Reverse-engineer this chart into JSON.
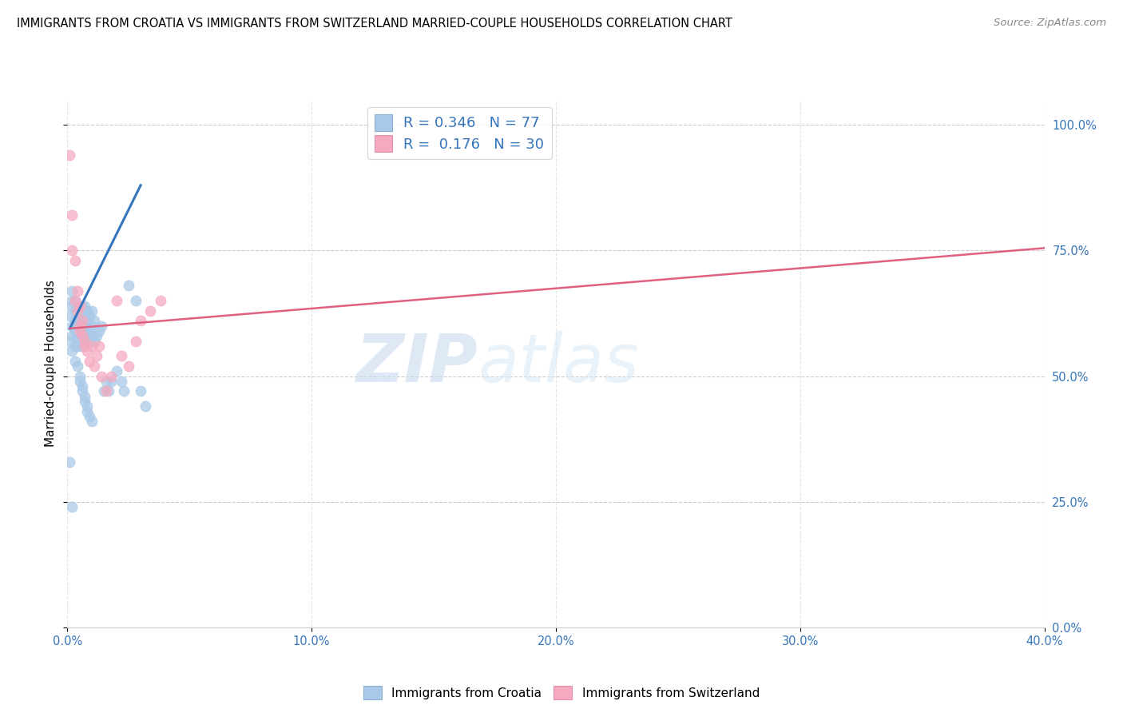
{
  "title": "IMMIGRANTS FROM CROATIA VS IMMIGRANTS FROM SWITZERLAND MARRIED-COUPLE HOUSEHOLDS CORRELATION CHART",
  "source": "Source: ZipAtlas.com",
  "xlim": [
    0.0,
    0.4
  ],
  "ylim": [
    0.0,
    1.05
  ],
  "ylabel": "Married-couple Households",
  "legend_label1": "Immigrants from Croatia",
  "legend_label2": "Immigrants from Switzerland",
  "r1": 0.346,
  "n1": 77,
  "r2": 0.176,
  "n2": 30,
  "color1": "#aac9e8",
  "color2": "#f5aabf",
  "line_color1": "#3575bb",
  "line_color2": "#e06080",
  "watermark_zip": "ZIP",
  "watermark_atlas": "atlas",
  "x_ticks": [
    0.0,
    0.1,
    0.2,
    0.3,
    0.4
  ],
  "x_tick_labels": [
    "0.0%",
    "10.0%",
    "20.0%",
    "30.0%",
    "40.0%"
  ],
  "y_ticks": [
    0.0,
    0.25,
    0.5,
    0.75,
    1.0
  ],
  "y_tick_labels": [
    "0.0%",
    "25.0%",
    "50.0%",
    "75.0%",
    "100.0%"
  ],
  "scatter1_x": [
    0.001,
    0.001,
    0.002,
    0.002,
    0.002,
    0.002,
    0.002,
    0.003,
    0.003,
    0.003,
    0.003,
    0.003,
    0.003,
    0.004,
    0.004,
    0.004,
    0.004,
    0.004,
    0.004,
    0.005,
    0.005,
    0.005,
    0.005,
    0.005,
    0.006,
    0.006,
    0.006,
    0.006,
    0.006,
    0.006,
    0.007,
    0.007,
    0.007,
    0.007,
    0.007,
    0.007,
    0.008,
    0.008,
    0.008,
    0.008,
    0.009,
    0.009,
    0.009,
    0.01,
    0.01,
    0.01,
    0.011,
    0.011,
    0.012,
    0.013,
    0.014,
    0.015,
    0.016,
    0.017,
    0.018,
    0.02,
    0.022,
    0.023,
    0.025,
    0.028,
    0.03,
    0.032,
    0.002,
    0.003,
    0.004,
    0.005,
    0.005,
    0.006,
    0.006,
    0.007,
    0.007,
    0.008,
    0.008,
    0.009,
    0.01,
    0.001,
    0.002
  ],
  "scatter1_y": [
    0.57,
    0.62,
    0.65,
    0.67,
    0.6,
    0.64,
    0.58,
    0.63,
    0.6,
    0.59,
    0.61,
    0.56,
    0.65,
    0.6,
    0.63,
    0.58,
    0.61,
    0.56,
    0.64,
    0.59,
    0.61,
    0.57,
    0.63,
    0.6,
    0.58,
    0.61,
    0.64,
    0.56,
    0.6,
    0.62,
    0.59,
    0.57,
    0.61,
    0.64,
    0.6,
    0.62,
    0.58,
    0.61,
    0.57,
    0.63,
    0.59,
    0.62,
    0.57,
    0.6,
    0.58,
    0.63,
    0.57,
    0.61,
    0.58,
    0.59,
    0.6,
    0.47,
    0.49,
    0.47,
    0.49,
    0.51,
    0.49,
    0.47,
    0.68,
    0.65,
    0.47,
    0.44,
    0.55,
    0.53,
    0.52,
    0.5,
    0.49,
    0.48,
    0.47,
    0.46,
    0.45,
    0.44,
    0.43,
    0.42,
    0.41,
    0.33,
    0.24
  ],
  "scatter2_x": [
    0.001,
    0.002,
    0.002,
    0.003,
    0.004,
    0.004,
    0.005,
    0.005,
    0.006,
    0.006,
    0.007,
    0.008,
    0.009,
    0.01,
    0.011,
    0.012,
    0.013,
    0.014,
    0.016,
    0.018,
    0.02,
    0.022,
    0.025,
    0.028,
    0.03,
    0.034,
    0.038,
    0.003,
    0.005,
    0.007
  ],
  "scatter2_y": [
    0.94,
    0.82,
    0.75,
    0.73,
    0.67,
    0.63,
    0.64,
    0.59,
    0.61,
    0.58,
    0.57,
    0.55,
    0.53,
    0.56,
    0.52,
    0.54,
    0.56,
    0.5,
    0.47,
    0.5,
    0.65,
    0.54,
    0.52,
    0.57,
    0.61,
    0.63,
    0.65,
    0.65,
    0.6,
    0.56
  ],
  "blue_line_x": [
    0.001,
    0.03
  ],
  "blue_line_y": [
    0.595,
    0.88
  ],
  "pink_line_x": [
    0.001,
    0.4
  ],
  "pink_line_y": [
    0.595,
    0.755
  ]
}
